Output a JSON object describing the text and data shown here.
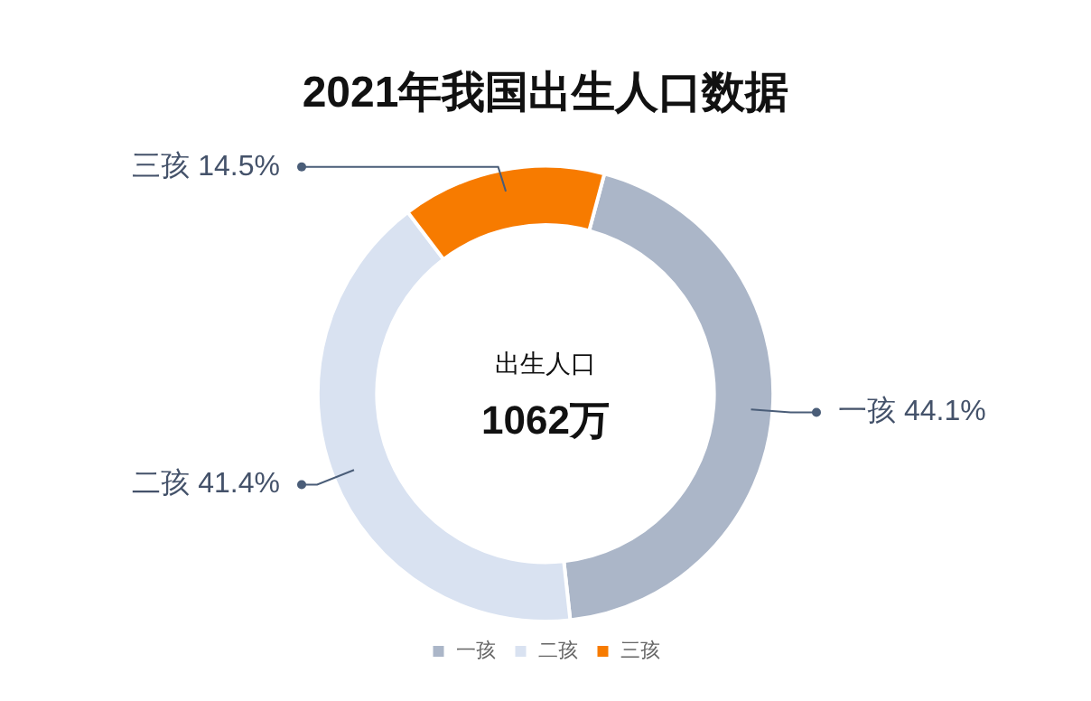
{
  "chart_data": {
    "type": "donut",
    "title": "2021年我国出生人口数据",
    "categories": [
      "一孩",
      "二孩",
      "三孩"
    ],
    "values": [
      44.1,
      41.4,
      14.5
    ],
    "value_labels": [
      "44.1%",
      "41.4%",
      "14.5%"
    ],
    "colors": [
      "#abb6c8",
      "#d9e2f1",
      "#f77b00"
    ],
    "legend": "bottom",
    "annotations": [
      "出生人口",
      "1062万"
    ]
  }
}
